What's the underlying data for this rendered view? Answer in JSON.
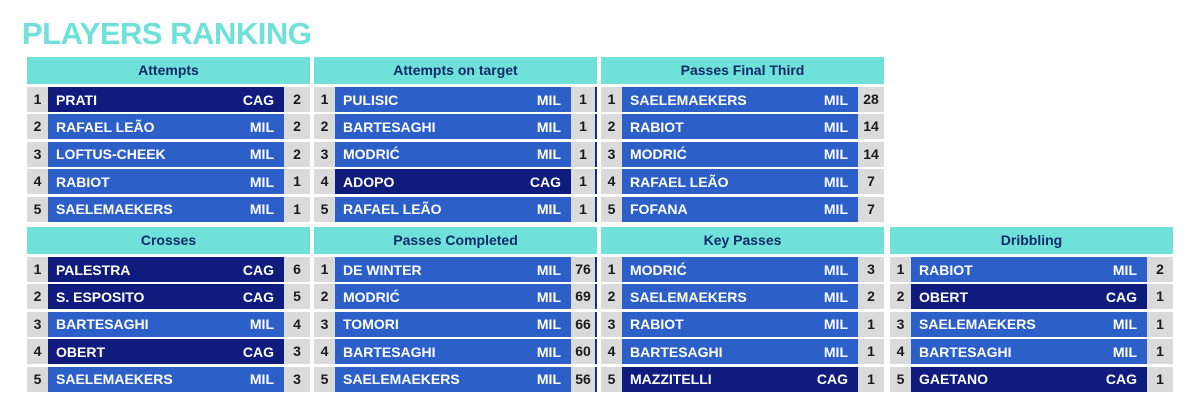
{
  "title": "PLAYERS RANKING",
  "colors": {
    "header_bg": "#6fe1d9",
    "mil": "#2d5fc8",
    "cag": "#101c7d",
    "cell": "#dadada"
  },
  "panels": [
    {
      "title": "Attempts",
      "rows": [
        {
          "rank": "1",
          "name": "PRATI",
          "team": "CAG",
          "value": "2"
        },
        {
          "rank": "2",
          "name": "RAFAEL LEÃO",
          "team": "MIL",
          "value": "2"
        },
        {
          "rank": "3",
          "name": "LOFTUS-CHEEK",
          "team": "MIL",
          "value": "2"
        },
        {
          "rank": "4",
          "name": "RABIOT",
          "team": "MIL",
          "value": "1"
        },
        {
          "rank": "5",
          "name": "SAELEMAEKERS",
          "team": "MIL",
          "value": "1"
        }
      ]
    },
    {
      "title": "Attempts on target",
      "rows": [
        {
          "rank": "1",
          "name": "PULISIC",
          "team": "MIL",
          "value": "1"
        },
        {
          "rank": "2",
          "name": "BARTESAGHI",
          "team": "MIL",
          "value": "1"
        },
        {
          "rank": "3",
          "name": "MODRIĆ",
          "team": "MIL",
          "value": "1"
        },
        {
          "rank": "4",
          "name": "ADOPO",
          "team": "CAG",
          "value": "1"
        },
        {
          "rank": "5",
          "name": "RAFAEL LEÃO",
          "team": "MIL",
          "value": "1"
        }
      ]
    },
    {
      "title": "Passes Final Third",
      "rows": [
        {
          "rank": "1",
          "name": "SAELEMAEKERS",
          "team": "MIL",
          "value": "28"
        },
        {
          "rank": "2",
          "name": "RABIOT",
          "team": "MIL",
          "value": "14"
        },
        {
          "rank": "3",
          "name": "MODRIĆ",
          "team": "MIL",
          "value": "14"
        },
        {
          "rank": "4",
          "name": "RAFAEL LEÃO",
          "team": "MIL",
          "value": "7"
        },
        {
          "rank": "5",
          "name": "FOFANA",
          "team": "MIL",
          "value": "7"
        }
      ]
    },
    {
      "title": "Crosses",
      "rows": [
        {
          "rank": "1",
          "name": "PALESTRA",
          "team": "CAG",
          "value": "6"
        },
        {
          "rank": "2",
          "name": "S. ESPOSITO",
          "team": "CAG",
          "value": "5"
        },
        {
          "rank": "3",
          "name": "BARTESAGHI",
          "team": "MIL",
          "value": "4"
        },
        {
          "rank": "4",
          "name": "OBERT",
          "team": "CAG",
          "value": "3"
        },
        {
          "rank": "5",
          "name": "SAELEMAEKERS",
          "team": "MIL",
          "value": "3"
        }
      ]
    },
    {
      "title": "Passes Completed",
      "rows": [
        {
          "rank": "1",
          "name": "DE WINTER",
          "team": "MIL",
          "value": "76"
        },
        {
          "rank": "2",
          "name": "MODRIĆ",
          "team": "MIL",
          "value": "69"
        },
        {
          "rank": "3",
          "name": "TOMORI",
          "team": "MIL",
          "value": "66"
        },
        {
          "rank": "4",
          "name": "BARTESAGHI",
          "team": "MIL",
          "value": "60"
        },
        {
          "rank": "5",
          "name": "SAELEMAEKERS",
          "team": "MIL",
          "value": "56"
        }
      ]
    },
    {
      "title": "Key Passes",
      "rows": [
        {
          "rank": "1",
          "name": "MODRIĆ",
          "team": "MIL",
          "value": "3"
        },
        {
          "rank": "2",
          "name": "SAELEMAEKERS",
          "team": "MIL",
          "value": "2"
        },
        {
          "rank": "3",
          "name": "RABIOT",
          "team": "MIL",
          "value": "1"
        },
        {
          "rank": "4",
          "name": "BARTESAGHI",
          "team": "MIL",
          "value": "1"
        },
        {
          "rank": "5",
          "name": "MAZZITELLI",
          "team": "CAG",
          "value": "1"
        }
      ]
    },
    {
      "title": "Dribbling",
      "rows": [
        {
          "rank": "1",
          "name": "RABIOT",
          "team": "MIL",
          "value": "2"
        },
        {
          "rank": "2",
          "name": "OBERT",
          "team": "CAG",
          "value": "1"
        },
        {
          "rank": "3",
          "name": "SAELEMAEKERS",
          "team": "MIL",
          "value": "1"
        },
        {
          "rank": "4",
          "name": "BARTESAGHI",
          "team": "MIL",
          "value": "1"
        },
        {
          "rank": "5",
          "name": "GAETANO",
          "team": "CAG",
          "value": "1"
        }
      ]
    }
  ]
}
